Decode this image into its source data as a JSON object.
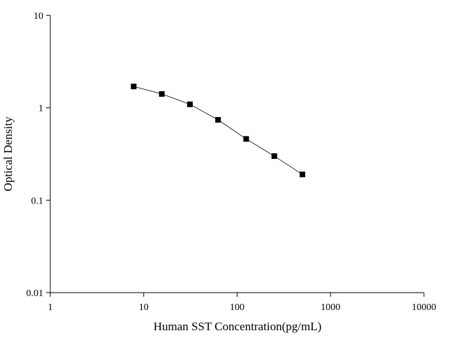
{
  "chart_data": {
    "type": "scatter",
    "x_label": "Human SST Concentration(pg/mL)",
    "y_label": "Optical Density",
    "x": [
      7.8125,
      15.625,
      31.25,
      62.5,
      125,
      250,
      500
    ],
    "values": [
      1.7,
      1.41,
      1.09,
      0.74,
      0.46,
      0.3,
      0.19
    ],
    "color": "#000000",
    "line": true,
    "xscale": "log",
    "yscale": "log",
    "xlim": [
      1,
      10000
    ],
    "xticks": [
      1,
      10,
      100,
      1000,
      10000
    ],
    "ylim": [
      0.01,
      10
    ],
    "yticks": [
      0.01,
      0.1,
      1,
      10
    ]
  }
}
